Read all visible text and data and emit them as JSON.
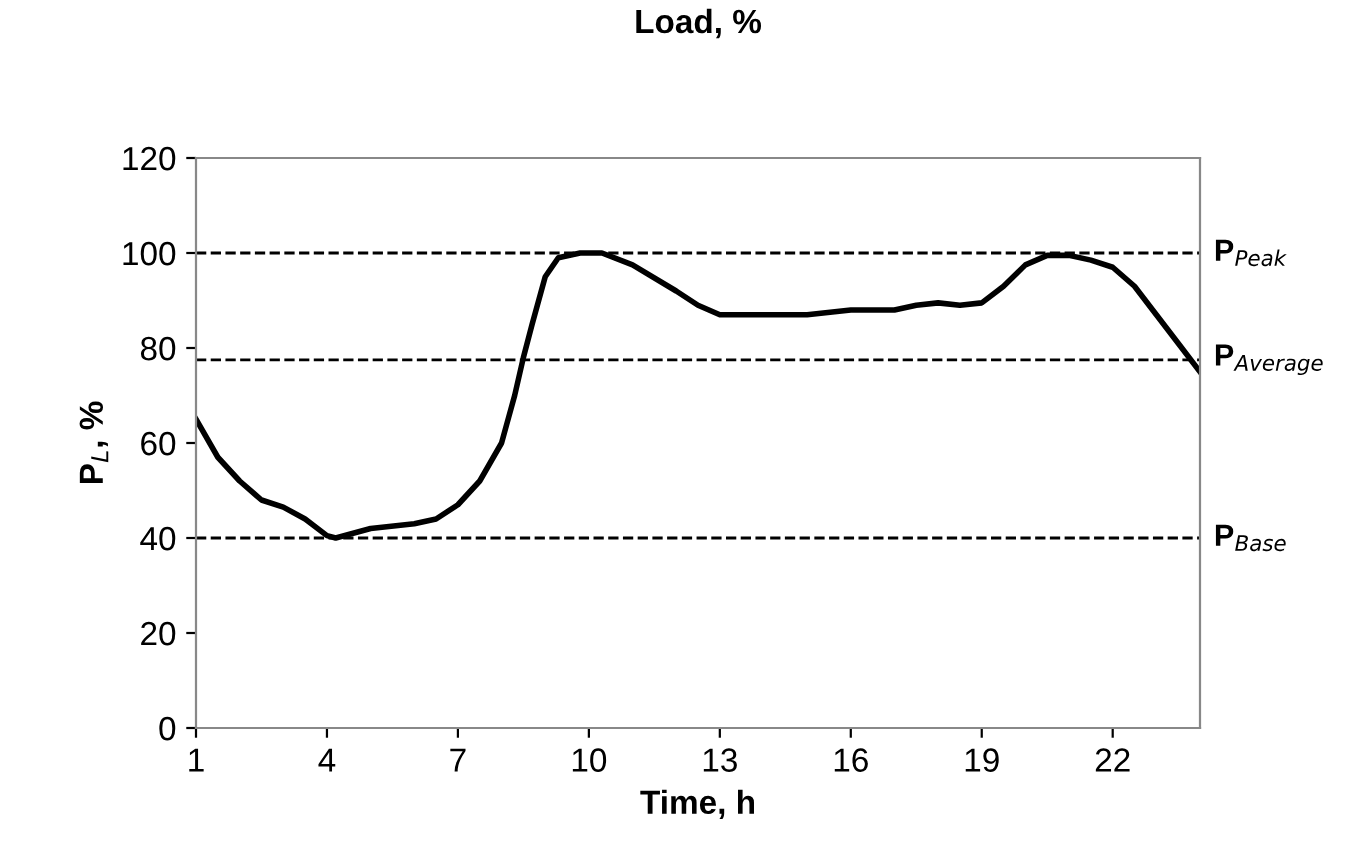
{
  "chart_data": {
    "type": "line",
    "title": "Load, %",
    "xlabel": "Time, h",
    "ylabel": "P$_{L}$, %",
    "xlim": [
      1,
      24
    ],
    "xticks": [
      1,
      4,
      7,
      10,
      13,
      16,
      19,
      22
    ],
    "ylim": [
      0,
      120
    ],
    "yticks": [
      0,
      20,
      40,
      60,
      80,
      100,
      120
    ],
    "grid": false,
    "legend": false,
    "marker": "none",
    "line_style": "solid",
    "series": [
      {
        "color": "#000000",
        "x": [
          1,
          1.5,
          2,
          2.5,
          3,
          3.5,
          4,
          4.2,
          5,
          6,
          6.5,
          7,
          7.5,
          8,
          8.3,
          8.5,
          8.7,
          9,
          9.3,
          9.8,
          10.3,
          11,
          12,
          12.5,
          13,
          15,
          16,
          17,
          17.5,
          18,
          18.5,
          19,
          19.5,
          20,
          20.5,
          21,
          21.5,
          22,
          22.5,
          23,
          23.5,
          24
        ],
        "values": [
          65,
          57,
          52,
          48,
          46.5,
          44,
          40.5,
          40,
          42,
          43,
          44,
          47,
          52,
          60,
          70,
          78,
          85,
          95,
          99,
          100,
          100,
          97.5,
          92,
          89,
          87,
          87,
          88,
          88,
          89,
          89.5,
          89,
          89.5,
          93,
          97.5,
          99.5,
          99.5,
          98.5,
          97,
          93,
          87,
          81,
          75
        ]
      }
    ],
    "ref_lines": [
      {
        "axis": "y",
        "value": 100,
        "label": "P$_{Peak}$",
        "color": "#000000",
        "line_style": "dashed"
      },
      {
        "axis": "y",
        "value": 77.5,
        "label": "P$_{Average}$",
        "color": "#000000",
        "line_style": "dashed"
      },
      {
        "axis": "y",
        "value": 40,
        "label": "P$_{Base}$",
        "color": "#000000",
        "line_style": "dashed"
      }
    ]
  }
}
